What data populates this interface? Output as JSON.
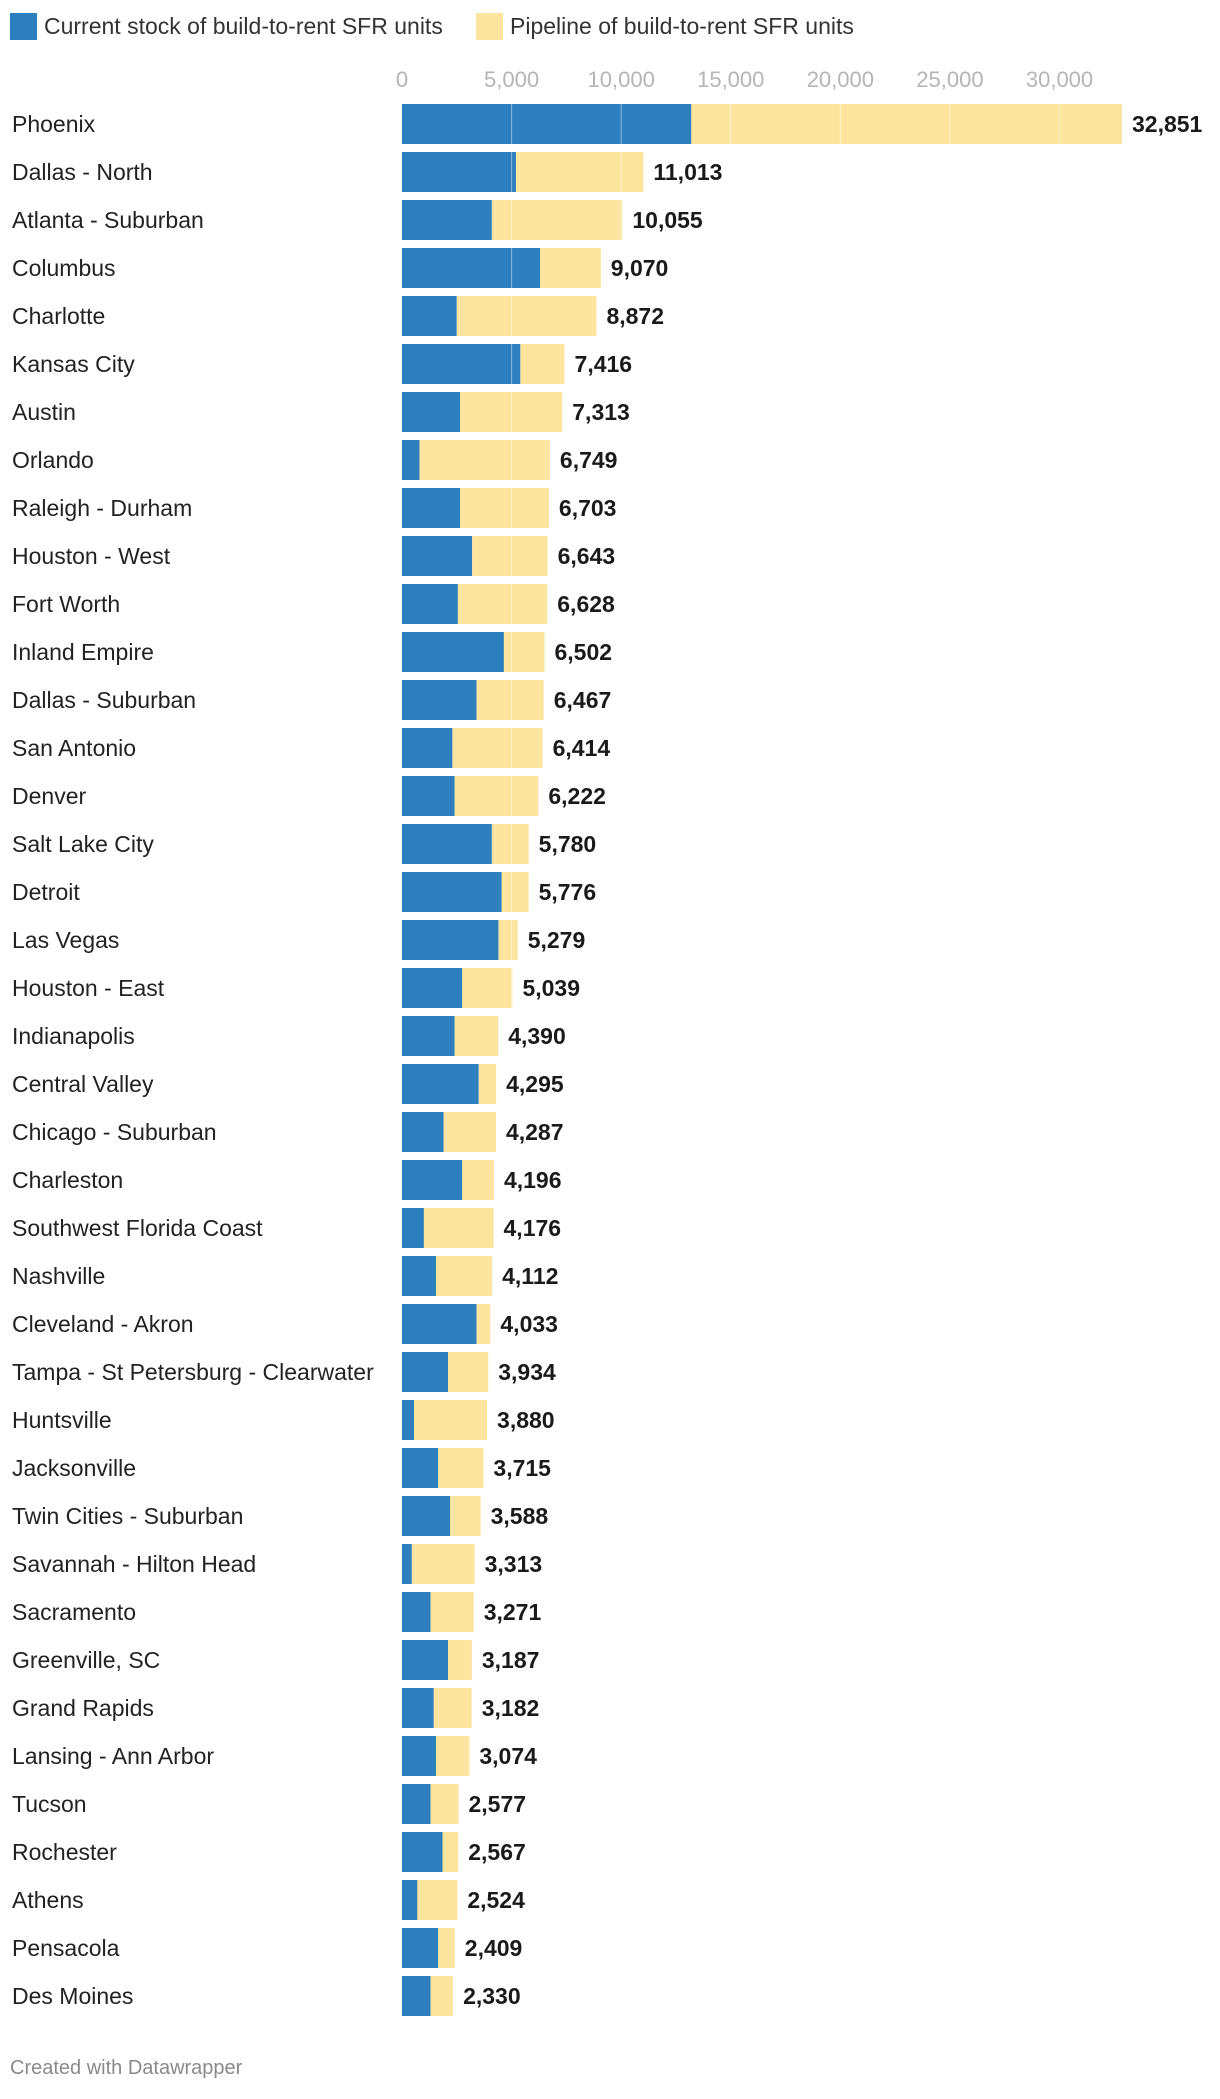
{
  "chart_data": {
    "type": "bar",
    "stacked": true,
    "orientation": "horizontal",
    "title": "",
    "xlabel": "",
    "ylabel": "",
    "xlim": [
      0,
      32851
    ],
    "ticks": [
      0,
      5000,
      10000,
      15000,
      20000,
      25000,
      30000
    ],
    "tick_labels": [
      "0",
      "5,000",
      "10,000",
      "15,000",
      "20,000",
      "25,000",
      "30,000"
    ],
    "grid": true,
    "legend_position": "top",
    "series": [
      {
        "name": "Current stock of build-to-rent SFR units",
        "color": "#2e7fbd",
        "values": [
          13200,
          5200,
          4100,
          6300,
          2500,
          5400,
          2650,
          800,
          2650,
          3200,
          2550,
          4650,
          3400,
          2300,
          2400,
          4100,
          4550,
          4400,
          2750,
          2400,
          3500,
          1900,
          2750,
          1000,
          1550,
          3400,
          2100,
          550,
          1650,
          2200,
          450,
          1300,
          2100,
          1450,
          1550,
          1300,
          1850,
          700,
          1650,
          1300
        ]
      },
      {
        "name": "Pipeline of build-to-rent SFR units",
        "color": "#fde49f",
        "values": [
          19651,
          5813,
          5955,
          2770,
          6372,
          2016,
          4663,
          5949,
          4053,
          3443,
          4078,
          1852,
          3067,
          4114,
          3822,
          1680,
          1226,
          879,
          2289,
          1990,
          795,
          2387,
          1446,
          3176,
          2562,
          633,
          1834,
          3330,
          2065,
          1388,
          2863,
          1971,
          1087,
          1732,
          1524,
          1277,
          717,
          1824,
          759,
          1030
        ]
      }
    ],
    "categories": [
      "Phoenix",
      "Dallas - North",
      "Atlanta - Suburban",
      "Columbus",
      "Charlotte",
      "Kansas City",
      "Austin",
      "Orlando",
      "Raleigh - Durham",
      "Houston - West",
      "Fort Worth",
      "Inland Empire",
      "Dallas - Suburban",
      "San Antonio",
      "Denver",
      "Salt Lake City",
      "Detroit",
      "Las Vegas",
      "Houston - East",
      "Indianapolis",
      "Central Valley",
      "Chicago - Suburban",
      "Charleston",
      "Southwest Florida Coast",
      "Nashville",
      "Cleveland - Akron",
      "Tampa - St Petersburg - Clearwater",
      "Huntsville",
      "Jacksonville",
      "Twin Cities - Suburban",
      "Savannah - Hilton Head",
      "Sacramento",
      "Greenville, SC",
      "Grand Rapids",
      "Lansing - Ann Arbor",
      "Tucson",
      "Rochester",
      "Athens",
      "Pensacola",
      "Des Moines"
    ],
    "totals": [
      32851,
      11013,
      10055,
      9070,
      8872,
      7416,
      7313,
      6749,
      6703,
      6643,
      6628,
      6502,
      6467,
      6414,
      6222,
      5780,
      5776,
      5279,
      5039,
      4390,
      4295,
      4287,
      4196,
      4176,
      4112,
      4033,
      3934,
      3880,
      3715,
      3588,
      3313,
      3271,
      3187,
      3182,
      3074,
      2577,
      2567,
      2524,
      2409,
      2330
    ],
    "total_labels": [
      "32,851",
      "11,013",
      "10,055",
      "9,070",
      "8,872",
      "7,416",
      "7,313",
      "6,749",
      "6,703",
      "6,643",
      "6,628",
      "6,502",
      "6,467",
      "6,414",
      "6,222",
      "5,780",
      "5,776",
      "5,279",
      "5,039",
      "4,390",
      "4,295",
      "4,287",
      "4,196",
      "4,176",
      "4,112",
      "4,033",
      "3,934",
      "3,880",
      "3,715",
      "3,588",
      "3,313",
      "3,271",
      "3,187",
      "3,182",
      "3,074",
      "2,577",
      "2,567",
      "2,524",
      "2,409",
      "2,330"
    ]
  },
  "credit": "Created with Datawrapper"
}
